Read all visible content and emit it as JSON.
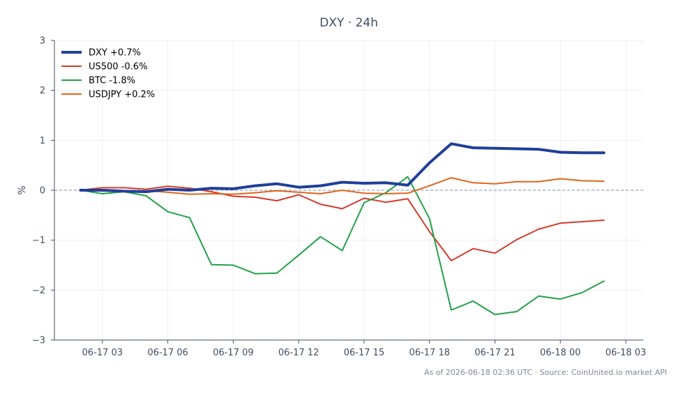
{
  "chart_data": {
    "type": "line",
    "title": "DXY · 24h",
    "ylabel": "%",
    "xlabel": "",
    "ylim": [
      -3,
      3
    ],
    "y_ticks": [
      3,
      2,
      1,
      0,
      -1,
      -2,
      -3
    ],
    "y_tick_labels": [
      "3",
      "2",
      "1",
      "0",
      "−1",
      "−2",
      "−3"
    ],
    "x_ticks": [
      {
        "hour": 3,
        "label": "06-17 03"
      },
      {
        "hour": 6,
        "label": "06-17 06"
      },
      {
        "hour": 9,
        "label": "06-17 09"
      },
      {
        "hour": 12,
        "label": "06-17 12"
      },
      {
        "hour": 15,
        "label": "06-17 15"
      },
      {
        "hour": 18,
        "label": "06-17 18"
      },
      {
        "hour": 21,
        "label": "06-17 21"
      },
      {
        "hour": 24,
        "label": "06-18 00"
      },
      {
        "hour": 27,
        "label": "06-18 03"
      }
    ],
    "x_hours": [
      2,
      3,
      4,
      5,
      6,
      7,
      8,
      9,
      10,
      11,
      12,
      13,
      14,
      15,
      16,
      17,
      18,
      19,
      20,
      21,
      22,
      23,
      24,
      25,
      26
    ],
    "grid": true,
    "zero_line": true,
    "legend_position": "top-left",
    "series": [
      {
        "name": "DXY +0.7%",
        "color": "#1f3f99",
        "width": 4,
        "values": [
          0.0,
          0.0,
          -0.02,
          -0.03,
          0.02,
          0.0,
          0.04,
          0.03,
          0.09,
          0.13,
          0.06,
          0.09,
          0.16,
          0.14,
          0.15,
          0.1,
          0.55,
          0.93,
          0.85,
          0.84,
          0.83,
          0.82,
          0.76,
          0.75,
          0.75
        ]
      },
      {
        "name": "US500 -0.6%",
        "color": "#d33a2c",
        "width": 2,
        "values": [
          0.0,
          0.05,
          0.05,
          0.02,
          0.08,
          0.04,
          -0.03,
          -0.12,
          -0.14,
          -0.21,
          -0.09,
          -0.28,
          -0.37,
          -0.16,
          -0.24,
          -0.17,
          -0.83,
          -1.41,
          -1.17,
          -1.26,
          -0.99,
          -0.78,
          -0.66,
          -0.63,
          -0.6
        ]
      },
      {
        "name": "BTC -1.8%",
        "color": "#22a14a",
        "width": 2,
        "values": [
          0.0,
          -0.07,
          -0.03,
          -0.11,
          -0.43,
          -0.55,
          -1.49,
          -1.5,
          -1.67,
          -1.66,
          -1.3,
          -0.93,
          -1.21,
          -0.25,
          -0.05,
          0.27,
          -0.57,
          -2.4,
          -2.22,
          -2.49,
          -2.43,
          -2.12,
          -2.18,
          -2.05,
          -1.82
        ]
      },
      {
        "name": "USDJPY +0.2%",
        "color": "#e0651d",
        "width": 2,
        "values": [
          0.0,
          0.01,
          -0.03,
          -0.01,
          -0.04,
          -0.08,
          -0.07,
          -0.08,
          -0.05,
          -0.01,
          -0.04,
          -0.07,
          0.0,
          -0.06,
          -0.07,
          -0.06,
          0.09,
          0.25,
          0.15,
          0.13,
          0.17,
          0.17,
          0.23,
          0.19,
          0.18
        ]
      }
    ],
    "footer": "As of 2026-06-18 02:36 UTC · Source: CoinUnited.io market API"
  },
  "colors": {
    "background": "#ffffff",
    "grid": "#eceff3",
    "axis": "#3f4e5e",
    "zero_line": "#7a93b0"
  }
}
